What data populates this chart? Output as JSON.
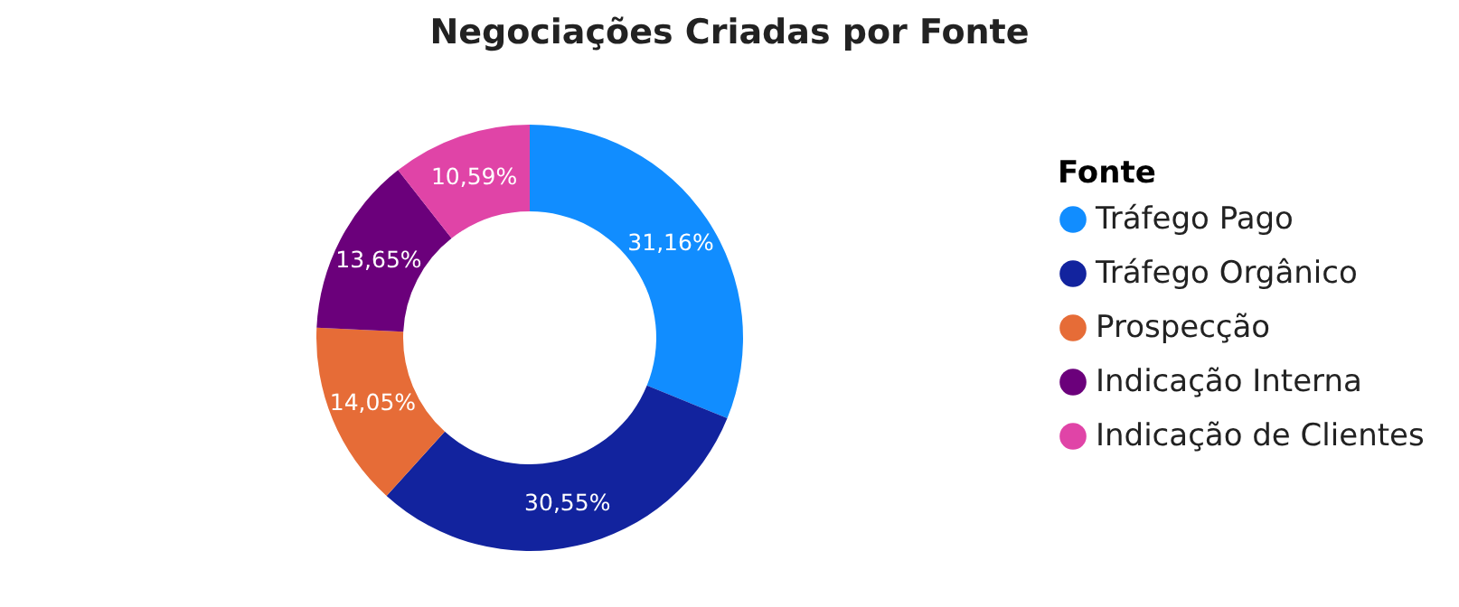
{
  "chart_data": {
    "type": "donut",
    "title": "Negociações Criadas por Fonte",
    "legend_title": "Fonte",
    "legend": "right",
    "categories": [
      "Tráfego Pago",
      "Tráfego Orgânico",
      "Prospecção",
      "Indicação Interna",
      "Indicação de Clientes"
    ],
    "values": [
      31.16,
      30.55,
      14.05,
      13.65,
      10.59
    ],
    "value_labels": [
      "31,16%",
      "30,55%",
      "14,05%",
      "13,65%",
      "10,59%"
    ],
    "colors": [
      "#118dff",
      "#12239e",
      "#e66c37",
      "#6b007b",
      "#e044a7"
    ]
  }
}
